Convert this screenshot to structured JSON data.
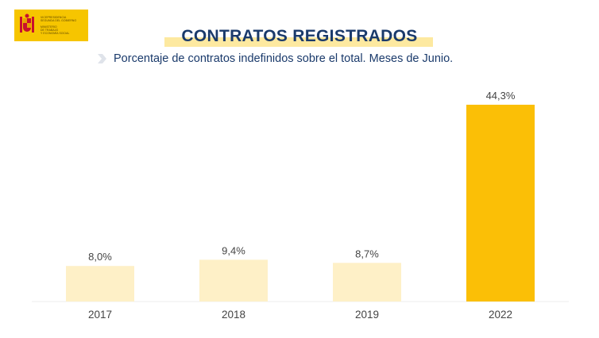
{
  "logo": {
    "lines": [
      "Vicepresidencia",
      "Segunda del Gobierno",
      "Ministerio",
      "de Trabajo",
      "y Economía Social"
    ]
  },
  "title": "CONTRATOS REGISTRADOS",
  "subtitle": "Porcentaje de contratos indefinidos sobre el total. Meses de Junio.",
  "colors": {
    "title_text": "#1a3a6b",
    "title_highlight": "#fde9a0",
    "bar_light": "#fef0c7",
    "bar_highlight": "#fbbf06",
    "logo_yellow": "#f6c500"
  },
  "chart_data": {
    "type": "bar",
    "categories": [
      "2017",
      "2018",
      "2019",
      "2022"
    ],
    "values": [
      8.0,
      9.4,
      8.7,
      44.3
    ],
    "data_labels": [
      "8,0%",
      "9,4%",
      "8,7%",
      "44,3%"
    ],
    "highlight_index": 3,
    "ylim": [
      0,
      44.3
    ],
    "grid": false,
    "legend": "none",
    "unit": "%"
  }
}
